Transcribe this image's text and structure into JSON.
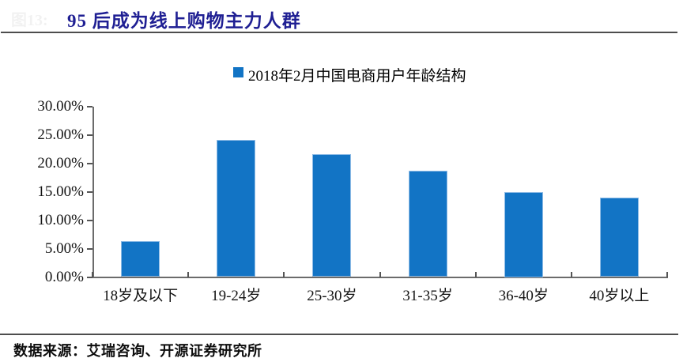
{
  "page": {
    "ghost_label": "图13:",
    "title": "95 后成为线上购物主力人群",
    "source_note": "数据来源：艾瑞咨询、开源证券研究所"
  },
  "colors": {
    "bar_fill": "#1274C5",
    "bar_edge": "#8FBCE6",
    "title_navy": "#1F1F93",
    "rule_gray": "#4d4d4d",
    "axis_gray": "#6b6b6b"
  },
  "chart_data": {
    "type": "bar",
    "legend": "2018年2月中国电商用户年龄结构",
    "categories": [
      "18岁及以下",
      "19-24岁",
      "25-30岁",
      "31-35岁",
      "36-40岁",
      "40岁以上"
    ],
    "values": [
      6.4,
      24.2,
      21.6,
      18.7,
      15.0,
      14.0
    ],
    "title": "",
    "xlabel": "",
    "ylabel": "",
    "ylim": [
      0,
      30
    ],
    "yticks": [
      0,
      5,
      10,
      15,
      20,
      25,
      30
    ],
    "ytick_labels": [
      "0.00%",
      "5.00%",
      "10.00%",
      "15.00%",
      "20.00%",
      "25.00%",
      "30.00%"
    ],
    "grid": false,
    "legend_position": "top-center"
  }
}
